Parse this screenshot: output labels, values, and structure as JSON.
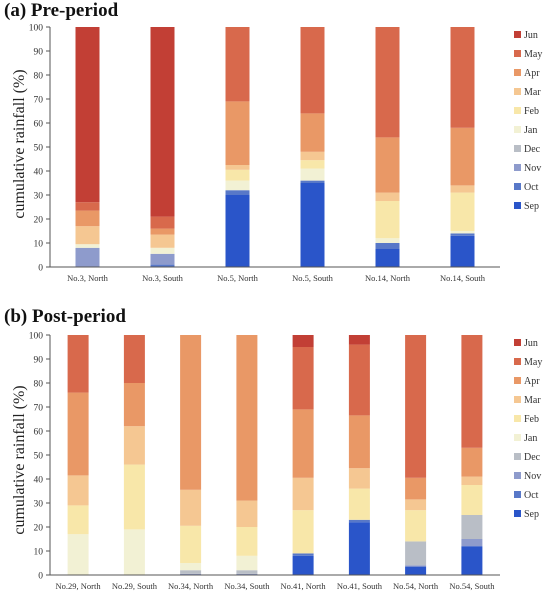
{
  "chart_data": [
    {
      "panel": "(a) Pre-period",
      "type": "bar",
      "stacked": true,
      "title": "(a) Pre-period",
      "ylabel": "cumulative rainfall  (%)",
      "ylim": [
        0,
        100
      ],
      "yticks": [
        0,
        10,
        20,
        30,
        40,
        50,
        60,
        70,
        80,
        90,
        100
      ],
      "grid": false,
      "legend_position": "right",
      "categories": [
        "No.3, North",
        "No.3, South",
        "No.5, North",
        "No.5, South",
        "No.14, North",
        "No.14, South"
      ],
      "series": [
        {
          "name": "Sep",
          "color": "#2a55c9",
          "values": [
            0,
            0,
            30,
            35,
            7.5,
            13
          ]
        },
        {
          "name": "Oct",
          "color": "#5878c8",
          "values": [
            0,
            1,
            2,
            1,
            2.5,
            1
          ]
        },
        {
          "name": "Nov",
          "color": "#8e9bcc",
          "values": [
            8,
            4.5,
            0,
            0,
            0,
            0
          ]
        },
        {
          "name": "Dec",
          "color": "#b9bec6",
          "values": [
            0,
            0,
            0,
            0,
            0,
            0
          ]
        },
        {
          "name": "Jan",
          "color": "#f2f1d4",
          "values": [
            1.5,
            2.5,
            4,
            5,
            2,
            1
          ]
        },
        {
          "name": "Feb",
          "color": "#f8e7a9",
          "values": [
            0,
            0,
            4.5,
            3.5,
            15.5,
            16
          ]
        },
        {
          "name": "Mar",
          "color": "#f5c792",
          "values": [
            7.5,
            5.5,
            2,
            3.5,
            3.5,
            3
          ]
        },
        {
          "name": "Apr",
          "color": "#e99866",
          "values": [
            6.5,
            2.5,
            26.5,
            16,
            23,
            24
          ]
        },
        {
          "name": "May",
          "color": "#d8694c",
          "values": [
            3.5,
            5,
            31,
            36,
            46,
            42
          ]
        },
        {
          "name": "Jun",
          "color": "#c23f35",
          "values": [
            73,
            79,
            0,
            0,
            0,
            0
          ]
        }
      ]
    },
    {
      "panel": "(b) Post-period",
      "type": "bar",
      "stacked": true,
      "title": "(b) Post-period",
      "ylabel": "cumulative rainfall  (%)",
      "ylim": [
        0,
        100
      ],
      "yticks": [
        0,
        10,
        20,
        30,
        40,
        50,
        60,
        70,
        80,
        90,
        100
      ],
      "grid": false,
      "legend_position": "right",
      "categories": [
        "No.29, North",
        "No.29, South",
        "No.34, North",
        "No.34, South",
        "No.41, North",
        "No.41, South",
        "No.54, North",
        "No.54, South"
      ],
      "series": [
        {
          "name": "Sep",
          "color": "#2a55c9",
          "values": [
            0,
            0,
            0,
            0,
            8,
            22,
            3.5,
            12
          ]
        },
        {
          "name": "Oct",
          "color": "#5878c8",
          "values": [
            0,
            0,
            0,
            0,
            1,
            1,
            0,
            0
          ]
        },
        {
          "name": "Nov",
          "color": "#8e9bcc",
          "values": [
            0,
            0,
            0.5,
            0.5,
            0,
            0,
            0.5,
            3
          ]
        },
        {
          "name": "Dec",
          "color": "#b9bec6",
          "values": [
            0,
            0,
            1.5,
            1.5,
            0,
            0,
            10,
            10
          ]
        },
        {
          "name": "Jan",
          "color": "#f2f1d4",
          "values": [
            17,
            19,
            3,
            6,
            0,
            0,
            0,
            0
          ]
        },
        {
          "name": "Feb",
          "color": "#f8e7a9",
          "values": [
            12,
            27,
            15.5,
            12,
            18,
            13,
            13,
            12.5
          ]
        },
        {
          "name": "Mar",
          "color": "#f5c792",
          "values": [
            12.5,
            16,
            15,
            11,
            13.5,
            8.5,
            4.5,
            3.5
          ]
        },
        {
          "name": "Apr",
          "color": "#e99866",
          "values": [
            34.5,
            18,
            64.5,
            69,
            28.5,
            22,
            9,
            12
          ]
        },
        {
          "name": "May",
          "color": "#d8694c",
          "values": [
            24,
            20,
            0,
            0,
            26,
            29.5,
            59.5,
            47
          ]
        },
        {
          "name": "Jun",
          "color": "#c23f35",
          "values": [
            0,
            0,
            0,
            0,
            5,
            4,
            0,
            0
          ]
        }
      ]
    }
  ]
}
